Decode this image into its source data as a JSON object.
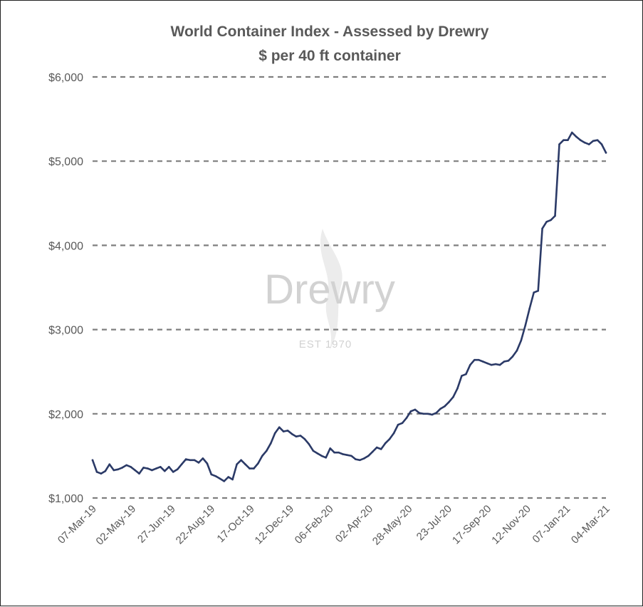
{
  "chart_data": {
    "type": "line",
    "title": "World Container Index - Assessed by Drewry",
    "subtitle": "$ per 40 ft container",
    "xlabel": "",
    "ylabel": "",
    "ylim": [
      1000,
      6000
    ],
    "yticks": [
      "$1,000",
      "$2,000",
      "$3,000",
      "$4,000",
      "$5,000",
      "$6,000"
    ],
    "ytick_values": [
      1000,
      2000,
      3000,
      4000,
      5000,
      6000
    ],
    "xtick_labels": [
      "07-Mar-19",
      "02-May-19",
      "27-Jun-19",
      "22-Aug-19",
      "17-Oct-19",
      "12-Dec-19",
      "06-Feb-20",
      "02-Apr-20",
      "28-May-20",
      "23-Jul-20",
      "17-Sep-20",
      "12-Nov-20",
      "07-Jan-21",
      "04-Mar-21"
    ],
    "grid": "horizontal dashed",
    "line_color": "#2b3a67",
    "watermark": {
      "name": "Drewry",
      "sub": "EST 1970"
    },
    "series": [
      {
        "values": [
          1450,
          1310,
          1290,
          1320,
          1400,
          1330,
          1340,
          1360,
          1390,
          1370,
          1330,
          1290,
          1360,
          1350,
          1330,
          1350,
          1370,
          1320,
          1370,
          1310,
          1340,
          1400,
          1460,
          1450,
          1450,
          1420,
          1470,
          1410,
          1280,
          1260,
          1230,
          1200,
          1250,
          1220,
          1400,
          1450,
          1400,
          1350,
          1350,
          1410,
          1500,
          1560,
          1650,
          1770,
          1840,
          1790,
          1800,
          1760,
          1730,
          1740,
          1700,
          1640,
          1560,
          1530,
          1500,
          1480,
          1590,
          1540,
          1540,
          1520,
          1510,
          1500,
          1460,
          1450,
          1470,
          1500,
          1550,
          1600,
          1580,
          1650,
          1700,
          1770,
          1870,
          1890,
          1950,
          2030,
          2050,
          2010,
          2000,
          2000,
          1990,
          2010,
          2060,
          2090,
          2140,
          2200,
          2300,
          2450,
          2470,
          2580,
          2640,
          2640,
          2620,
          2600,
          2580,
          2590,
          2580,
          2620,
          2630,
          2680,
          2750,
          2870,
          3050,
          3250,
          3440,
          3460,
          4200,
          4280,
          4300,
          4350,
          5200,
          5250,
          5250,
          5340,
          5290,
          5250,
          5220,
          5200,
          5240,
          5250,
          5200,
          5100
        ]
      }
    ]
  }
}
